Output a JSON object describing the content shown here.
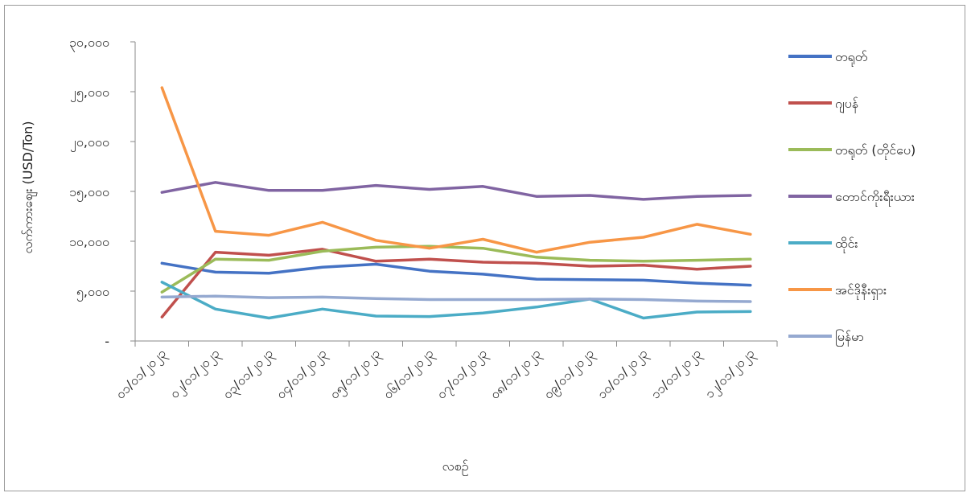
{
  "chart_data": {
    "type": "line",
    "ylabel": "လက်ကားဈေး (USD/Ton)",
    "xlabel": "လစဉ်",
    "ylim": [
      0,
      30000
    ],
    "y_ticks": [
      0,
      5000,
      10000,
      15000,
      20000,
      25000,
      30000
    ],
    "y_tick_labels": [
      "-",
      "၅,၀၀၀",
      "၁၀,၀၀၀",
      "၁၅,၀၀၀",
      "၂၀,၀၀၀",
      "၂၅,၀၀၀",
      "၃၀,၀၀၀"
    ],
    "categories": [
      "၀၁/၀၁/၂၀၂၃",
      "၀၂/၀၁/၂၀၂၃",
      "၀၃/၀၁/၂၀၂၃",
      "၀၄/၀၁/၂၀၂၃",
      "၀၅/၀၁/၂၀၂၃",
      "၀၆/၀၁/၂၀၂၃",
      "၀၇/၀၁/၂၀၂၃",
      "၀၈/၀၁/၂၀၂၃",
      "၀၉/၀၁/၂၀၂၃",
      "၁၀/၀၁/၂၀၂၃",
      "၁၁/၀၁/၂၀၂၃",
      "၁၂/၀၁/၂၀၂၃"
    ],
    "grid": false,
    "legend_position": "right",
    "series": [
      {
        "name": "တရုတ်",
        "color": "#4472C4",
        "values": [
          7800,
          6900,
          6800,
          7400,
          7700,
          7000,
          6700,
          6200,
          6150,
          6100,
          5800,
          5600
        ]
      },
      {
        "name": "ဂျပန်",
        "color": "#C0504D",
        "values": [
          2400,
          8900,
          8600,
          9200,
          8000,
          8200,
          7900,
          7800,
          7500,
          7600,
          7200,
          7500
        ]
      },
      {
        "name": "တရုတ် (တိုင်ပေ)",
        "color": "#9BBB59",
        "values": [
          4900,
          8200,
          8100,
          9000,
          9400,
          9500,
          9300,
          8400,
          8100,
          8000,
          8100,
          8200
        ]
      },
      {
        "name": "တောင်ကိုးရီးယား",
        "color": "#8064A2",
        "values": [
          14900,
          15900,
          15100,
          15100,
          15600,
          15200,
          15500,
          14500,
          14600,
          14200,
          14500,
          14600
        ]
      },
      {
        "name": "ထိုင်း",
        "color": "#4BACC6",
        "values": [
          5900,
          3200,
          2300,
          3200,
          2500,
          2450,
          2800,
          3400,
          4200,
          2300,
          2900,
          2950
        ]
      },
      {
        "name": "အင်ဒိုနီးရှား",
        "color": "#F79646",
        "values": [
          25400,
          11000,
          10600,
          11900,
          10100,
          9300,
          10200,
          8900,
          9900,
          10400,
          11700,
          10700
        ]
      },
      {
        "name": "မြန်မာ",
        "color": "#95A9D0",
        "values": [
          4400,
          4500,
          4350,
          4400,
          4250,
          4150,
          4150,
          4150,
          4200,
          4150,
          4000,
          3950
        ]
      }
    ]
  }
}
